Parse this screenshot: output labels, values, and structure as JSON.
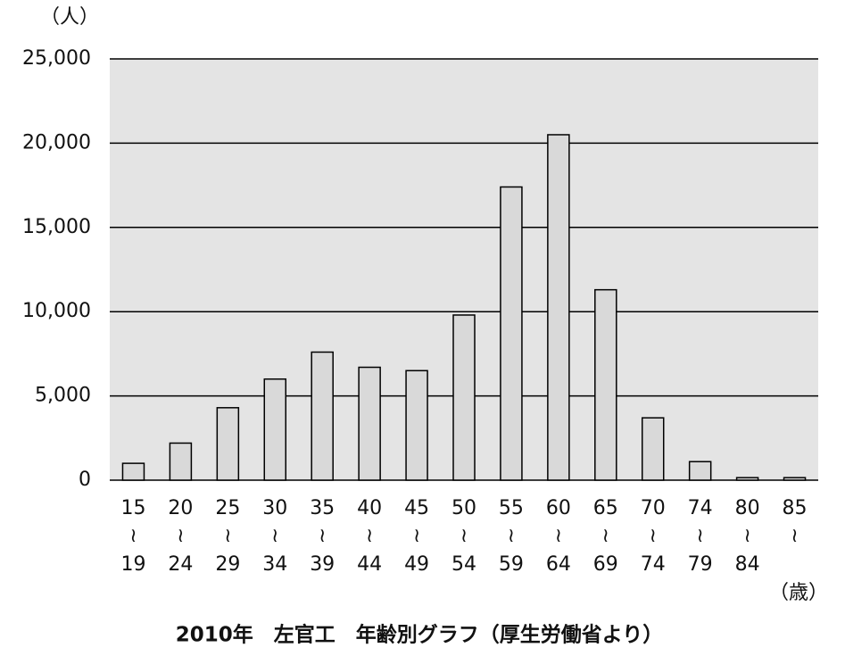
{
  "chart_data": {
    "type": "bar",
    "title": "2010年　左官工　年齢別グラフ（厚生労働省より）",
    "y_unit": "（人）",
    "x_unit": "（歳）",
    "categories": [
      "15≀19",
      "20≀24",
      "25≀29",
      "30≀34",
      "35≀39",
      "40≀44",
      "45≀49",
      "50≀54",
      "55≀59",
      "60≀64",
      "65≀69",
      "70≀74",
      "74≀79",
      "80≀84",
      "85≀"
    ],
    "values": [
      1000,
      2200,
      4300,
      6000,
      7600,
      6700,
      6500,
      9800,
      17400,
      20500,
      11300,
      3700,
      1100,
      150,
      150
    ],
    "color": "#d9d9d9",
    "ylim": [
      0,
      25000
    ],
    "yticks": [
      0,
      {
        "value": 5000,
        "label": "5,000"
      },
      {
        "value": 10000,
        "label": "10,000"
      },
      {
        "value": 15000,
        "label": "15,000"
      },
      {
        "value": 20000,
        "label": "20,000"
      },
      {
        "value": 25000,
        "label": "25,000"
      }
    ],
    "grid": true
  }
}
